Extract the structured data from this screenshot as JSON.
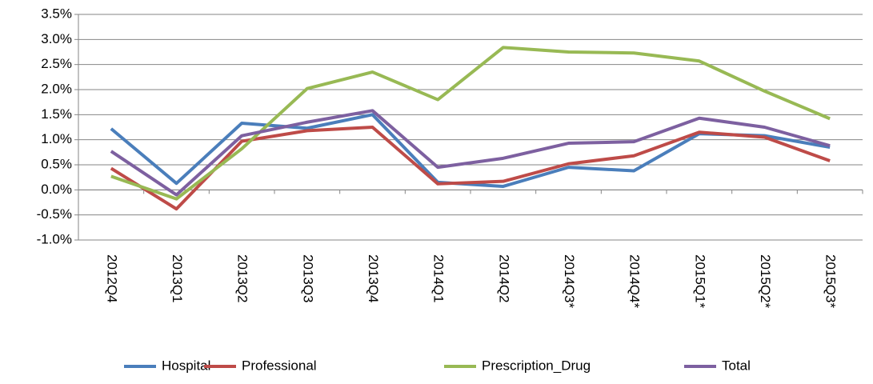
{
  "chart_data": {
    "type": "line",
    "categories": [
      "2012Q4",
      "2013Q1",
      "2013Q2",
      "2013Q3",
      "2013Q4",
      "2014Q1",
      "2014Q2",
      "2014Q3*",
      "2014Q4*",
      "2015Q1*",
      "2015Q2*",
      "2015Q3*"
    ],
    "series": [
      {
        "name": "Hospital",
        "color": "#4a7ebb",
        "values": [
          1.22,
          0.13,
          1.33,
          1.23,
          1.5,
          0.15,
          0.07,
          0.45,
          0.38,
          1.12,
          1.08,
          0.85
        ]
      },
      {
        "name": "Professional",
        "color": "#be4b48",
        "values": [
          0.43,
          -0.38,
          0.97,
          1.18,
          1.25,
          0.12,
          0.17,
          0.52,
          0.68,
          1.15,
          1.05,
          0.58
        ]
      },
      {
        "name": "Prescription_Drug",
        "color": "#98b954",
        "values": [
          0.27,
          -0.18,
          0.82,
          2.02,
          2.35,
          1.8,
          2.84,
          2.75,
          2.73,
          2.57,
          1.97,
          1.42
        ]
      },
      {
        "name": "Total",
        "color": "#7d60a0",
        "values": [
          0.77,
          -0.1,
          1.08,
          1.35,
          1.58,
          0.45,
          0.63,
          0.93,
          0.96,
          1.43,
          1.25,
          0.88
        ]
      }
    ],
    "ylim": [
      -1.0,
      3.5
    ],
    "yticks": [
      {
        "value": -1.0,
        "label": "-1.0%"
      },
      {
        "value": -0.5,
        "label": "-0.5%"
      },
      {
        "value": 0,
        "label": "0.0%"
      },
      {
        "value": 0.5,
        "label": "0.5%"
      },
      {
        "value": 1.0,
        "label": "1.0%"
      },
      {
        "value": 1.5,
        "label": "1.5%"
      },
      {
        "value": 2.0,
        "label": "2.0%"
      },
      {
        "value": 2.5,
        "label": "2.5%"
      },
      {
        "value": 3.0,
        "label": "3.0%"
      },
      {
        "value": 3.5,
        "label": "3.5%"
      }
    ],
    "grid": true,
    "legend": "bottom"
  }
}
